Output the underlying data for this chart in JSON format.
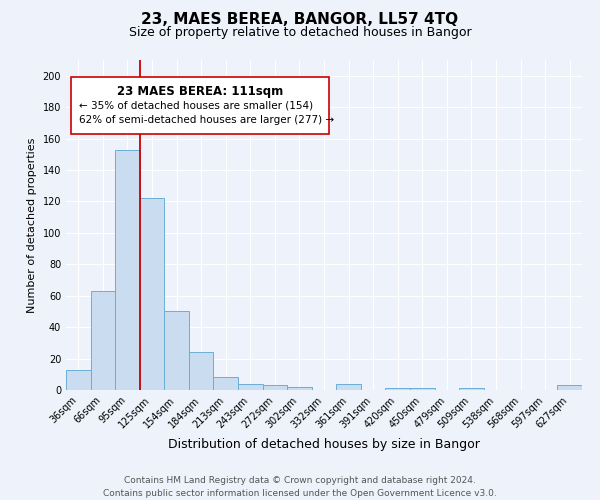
{
  "title": "23, MAES BEREA, BANGOR, LL57 4TQ",
  "subtitle": "Size of property relative to detached houses in Bangor",
  "xlabel": "Distribution of detached houses by size in Bangor",
  "ylabel": "Number of detached properties",
  "bar_labels": [
    "36sqm",
    "66sqm",
    "95sqm",
    "125sqm",
    "154sqm",
    "184sqm",
    "213sqm",
    "243sqm",
    "272sqm",
    "302sqm",
    "332sqm",
    "361sqm",
    "391sqm",
    "420sqm",
    "450sqm",
    "479sqm",
    "509sqm",
    "538sqm",
    "568sqm",
    "597sqm",
    "627sqm"
  ],
  "bar_values": [
    13,
    63,
    153,
    122,
    50,
    24,
    8,
    4,
    3,
    2,
    0,
    4,
    0,
    1,
    1,
    0,
    1,
    0,
    0,
    0,
    3
  ],
  "bar_color": "#c9dcf0",
  "bar_edge_color": "#6aaed6",
  "vline_color": "#cc0000",
  "vline_x_index": 2.5,
  "annotation_title": "23 MAES BEREA: 111sqm",
  "annotation_line1": "← 35% of detached houses are smaller (154)",
  "annotation_line2": "62% of semi-detached houses are larger (277) →",
  "ylim": [
    0,
    210
  ],
  "yticks": [
    0,
    20,
    40,
    60,
    80,
    100,
    120,
    140,
    160,
    180,
    200
  ],
  "footer_line1": "Contains HM Land Registry data © Crown copyright and database right 2024.",
  "footer_line2": "Contains public sector information licensed under the Open Government Licence v3.0.",
  "background_color": "#eef2fa",
  "grid_color": "#ffffff",
  "title_fontsize": 11,
  "subtitle_fontsize": 9,
  "ylabel_fontsize": 8,
  "xlabel_fontsize": 9,
  "tick_fontsize": 7,
  "footer_fontsize": 6.5,
  "annotation_title_fontsize": 8.5,
  "annotation_body_fontsize": 7.5
}
